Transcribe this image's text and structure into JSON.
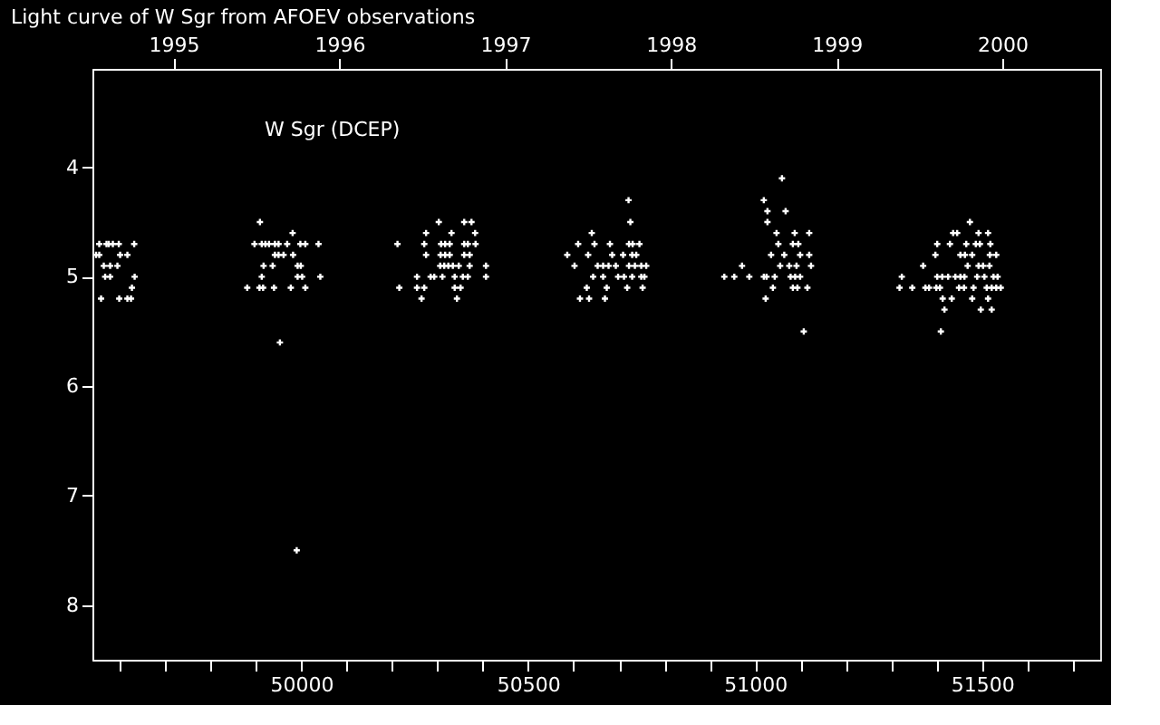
{
  "chart_data": {
    "type": "scatter",
    "title": "Light curve of W Sgr from AFOEV observations",
    "annotations": [
      "W Sgr (DCEP)"
    ],
    "marker": "cross",
    "xlim": [
      49540,
      51760
    ],
    "ylim": [
      8.5,
      3.1
    ],
    "yticks": [
      4,
      5,
      6,
      7,
      8
    ],
    "xticks": [
      {
        "value": 49600,
        "label": null
      },
      {
        "value": 49700,
        "label": null
      },
      {
        "value": 49800,
        "label": null
      },
      {
        "value": 49900,
        "label": null
      },
      50000,
      {
        "value": 50100,
        "label": null
      },
      {
        "value": 50200,
        "label": null
      },
      {
        "value": 50300,
        "label": null
      },
      {
        "value": 50400,
        "label": null
      },
      50500,
      {
        "value": 50600,
        "label": null
      },
      {
        "value": 50700,
        "label": null
      },
      {
        "value": 50800,
        "label": null
      },
      {
        "value": 50900,
        "label": null
      },
      51000,
      {
        "value": 51100,
        "label": null
      },
      {
        "value": 51200,
        "label": null
      },
      {
        "value": 51300,
        "label": null
      },
      {
        "value": 51400,
        "label": null
      },
      51500,
      {
        "value": 51600,
        "label": null
      },
      {
        "value": 51700,
        "label": null
      }
    ],
    "x2lim": [
      1994.51,
      2000.59
    ],
    "x2ticks": [
      1995,
      1996,
      1997,
      1998,
      1999,
      2000
    ],
    "series": [
      {
        "color": "#ffffff",
        "x": [
          49555,
          49571,
          49576,
          49585,
          49598,
          49632,
          49548,
          49555,
          49601,
          49617,
          49565,
          49579,
          49595,
          49568,
          49579,
          49633,
          49627,
          49559,
          49599,
          49617,
          49625,
          49909,
          49981,
          49897,
          49913,
          49921,
          49929,
          49942,
          49950,
          49969,
          49998,
          50009,
          50038,
          49942,
          49950,
          49961,
          49982,
          49917,
          49937,
          49992,
          49999,
          49913,
          49992,
          50002,
          50042,
          49881,
          49908,
          49916,
          49940,
          49977,
          50009,
          49953,
          49990,
          50303,
          50359,
          50375,
          50275,
          50331,
          50383,
          50212,
          50271,
          50308,
          50317,
          50327,
          50359,
          50367,
          50384,
          50275,
          50307,
          50317,
          50327,
          50359,
          50371,
          50306,
          50315,
          50324,
          50334,
          50347,
          50371,
          50407,
          50255,
          50285,
          50293,
          50311,
          50338,
          50356,
          50367,
          50407,
          50216,
          50255,
          50271,
          50338,
          50351,
          50265,
          50343,
          50640,
          50610,
          50646,
          50586,
          50632,
          50602,
          50643,
          50629,
          50614,
          50634,
          50721,
          50725,
          50680,
          50722,
          50730,
          50745,
          50685,
          50709,
          50729,
          50738,
          50653,
          50665,
          50677,
          50693,
          50722,
          50735,
          50749,
          50760,
          50665,
          50698,
          50711,
          50729,
          50749,
          50756,
          50673,
          50718,
          50752,
          50669,
          51059,
          51019,
          51027,
          51067,
          51027,
          51047,
          51087,
          51119,
          51051,
          51083,
          51095,
          51035,
          51064,
          51099,
          51119,
          50971,
          51055,
          51075,
          51091,
          51123,
          50932,
          50954,
          50987,
          51019,
          51025,
          51043,
          51078,
          51088,
          51099,
          51039,
          51083,
          51093,
          51115,
          51023,
          51107,
          51473,
          51436,
          51445,
          51492,
          51513,
          51401,
          51429,
          51465,
          51486,
          51495,
          51518,
          51397,
          51452,
          51462,
          51478,
          51517,
          51531,
          51370,
          51468,
          51492,
          51502,
          51516,
          51323,
          51401,
          51412,
          51425,
          51441,
          51452,
          51461,
          51489,
          51505,
          51525,
          51534,
          51318,
          51346,
          51375,
          51383,
          51399,
          51407,
          51449,
          51460,
          51481,
          51510,
          51521,
          51531,
          51541,
          51413,
          51433,
          51478,
          51513,
          51417,
          51497,
          51521,
          51409
        ],
        "values": [
          4.7,
          4.7,
          4.7,
          4.7,
          4.7,
          4.7,
          4.8,
          4.8,
          4.8,
          4.8,
          4.9,
          4.9,
          4.9,
          5.0,
          5.0,
          5.0,
          5.1,
          5.2,
          5.2,
          5.2,
          5.2,
          4.5,
          4.6,
          4.7,
          4.7,
          4.7,
          4.7,
          4.7,
          4.7,
          4.7,
          4.7,
          4.7,
          4.7,
          4.8,
          4.8,
          4.8,
          4.8,
          4.9,
          4.9,
          4.9,
          4.9,
          5.0,
          5.0,
          5.0,
          5.0,
          5.1,
          5.1,
          5.1,
          5.1,
          5.1,
          5.1,
          5.6,
          7.5,
          4.5,
          4.5,
          4.5,
          4.6,
          4.6,
          4.6,
          4.7,
          4.7,
          4.7,
          4.7,
          4.7,
          4.7,
          4.7,
          4.7,
          4.8,
          4.8,
          4.8,
          4.8,
          4.8,
          4.8,
          4.9,
          4.9,
          4.9,
          4.9,
          4.9,
          4.9,
          4.9,
          5.0,
          5.0,
          5.0,
          5.0,
          5.0,
          5.0,
          5.0,
          5.0,
          5.1,
          5.1,
          5.1,
          5.1,
          5.1,
          5.2,
          5.2,
          4.6,
          4.7,
          4.7,
          4.8,
          4.8,
          4.9,
          5.0,
          5.1,
          5.2,
          5.2,
          4.3,
          4.5,
          4.7,
          4.7,
          4.7,
          4.7,
          4.8,
          4.8,
          4.8,
          4.8,
          4.9,
          4.9,
          4.9,
          4.9,
          4.9,
          4.9,
          4.9,
          4.9,
          5.0,
          5.0,
          5.0,
          5.0,
          5.0,
          5.0,
          5.1,
          5.1,
          5.1,
          5.2,
          4.1,
          4.3,
          4.4,
          4.4,
          4.5,
          4.6,
          4.6,
          4.6,
          4.7,
          4.7,
          4.7,
          4.8,
          4.8,
          4.8,
          4.8,
          4.9,
          4.9,
          4.9,
          4.9,
          4.9,
          5.0,
          5.0,
          5.0,
          5.0,
          5.0,
          5.0,
          5.0,
          5.0,
          5.0,
          5.1,
          5.1,
          5.1,
          5.1,
          5.2,
          5.5,
          4.5,
          4.6,
          4.6,
          4.6,
          4.6,
          4.7,
          4.7,
          4.7,
          4.7,
          4.7,
          4.7,
          4.8,
          4.8,
          4.8,
          4.8,
          4.8,
          4.8,
          4.9,
          4.9,
          4.9,
          4.9,
          4.9,
          5.0,
          5.0,
          5.0,
          5.0,
          5.0,
          5.0,
          5.0,
          5.0,
          5.0,
          5.0,
          5.0,
          5.1,
          5.1,
          5.1,
          5.1,
          5.1,
          5.1,
          5.1,
          5.1,
          5.1,
          5.1,
          5.1,
          5.1,
          5.1,
          5.2,
          5.2,
          5.2,
          5.2,
          5.3,
          5.3,
          5.3,
          5.5
        ]
      }
    ]
  }
}
